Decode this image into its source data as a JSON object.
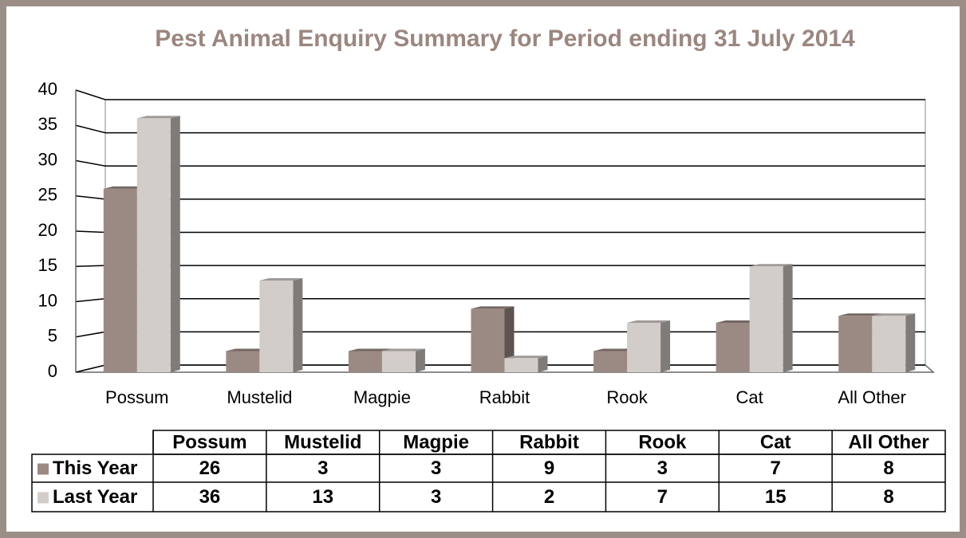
{
  "chart_data": {
    "type": "bar3d",
    "title": "Pest Animal Enquiry Summary for Period ending 31 July 2014",
    "categories": [
      "Possum",
      "Mustelid",
      "Magpie",
      "Rabbit",
      "Rook",
      "Cat",
      "All Other"
    ],
    "series": [
      {
        "name": "This Year",
        "color": "#9b8a84",
        "values": [
          26,
          3,
          3,
          9,
          3,
          7,
          8
        ]
      },
      {
        "name": "Last Year",
        "color": "#d3cdca",
        "values": [
          36,
          13,
          3,
          2,
          7,
          15,
          8
        ]
      }
    ],
    "ylim": [
      0,
      40
    ],
    "yticks": [
      0,
      5,
      10,
      15,
      20,
      25,
      30,
      35,
      40
    ],
    "grid": true
  }
}
